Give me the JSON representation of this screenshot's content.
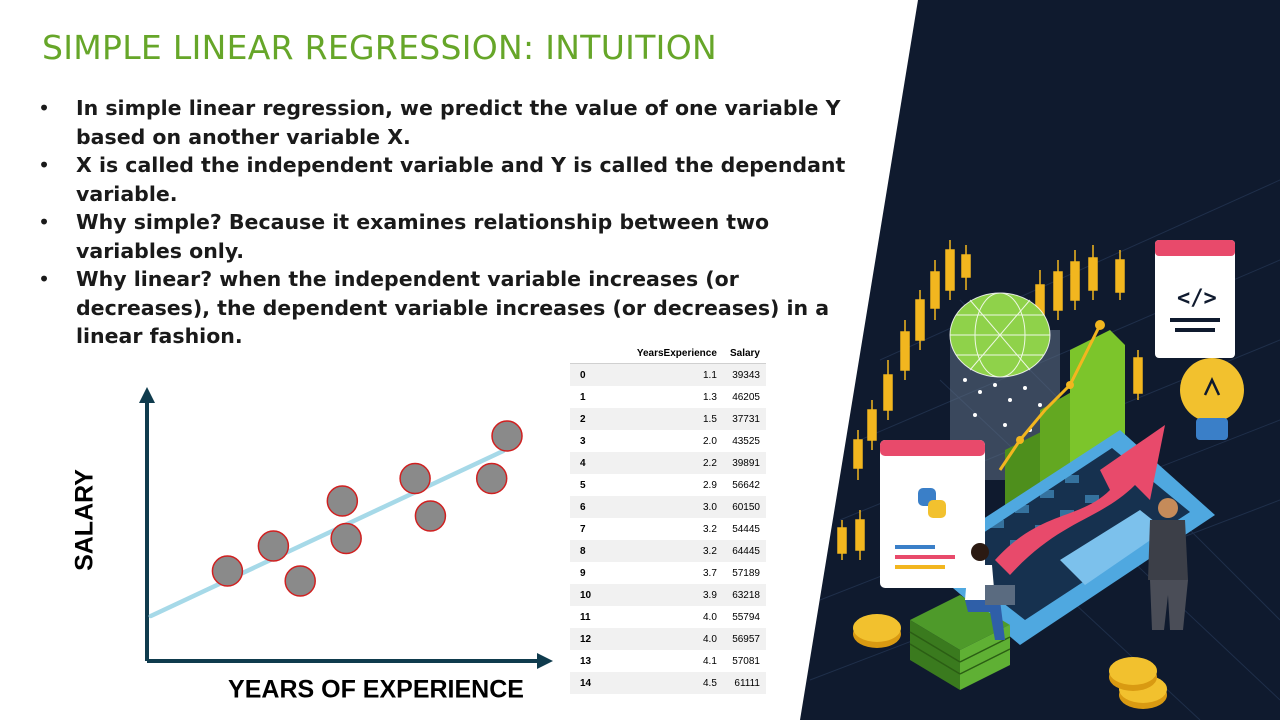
{
  "slide": {
    "title": "SIMPLE LINEAR REGRESSION: INTUITION",
    "bullet_symbol": "•",
    "bullets": [
      "In simple linear regression, we predict the value of one variable Y based on another variable X.",
      "X is called the independent variable and Y is called the dependant variable.",
      "Why simple? Because it examines relationship between two variables only.",
      "Why linear? when the independent variable increases (or decreases), the dependent variable increases (or decreases) in a linear fashion."
    ]
  },
  "chart_data": {
    "type": "scatter",
    "xlabel": "YEARS OF EXPERIENCE",
    "ylabel": "SALARY",
    "xlim": [
      0,
      10
    ],
    "ylim": [
      0,
      10
    ],
    "grid": false,
    "points": [
      {
        "x": 2.1,
        "y": 3.6
      },
      {
        "x": 3.3,
        "y": 4.6
      },
      {
        "x": 4.0,
        "y": 3.2
      },
      {
        "x": 5.1,
        "y": 6.4
      },
      {
        "x": 5.2,
        "y": 4.9
      },
      {
        "x": 7.0,
        "y": 7.3
      },
      {
        "x": 7.4,
        "y": 5.8
      },
      {
        "x": 9.0,
        "y": 7.3
      },
      {
        "x": 9.4,
        "y": 9.0
      }
    ],
    "fit_line": {
      "x": [
        0.1,
        9.3
      ],
      "y": [
        1.8,
        8.4
      ]
    },
    "colors": {
      "point_fill": "#8a8a8a",
      "point_edge": "#d02020",
      "line": "#a6d9e8",
      "axes": "#0f3b4d"
    }
  },
  "table": {
    "columns": [
      "",
      "YearsExperience",
      "Salary"
    ],
    "rows": [
      [
        "0",
        "1.1",
        "39343"
      ],
      [
        "1",
        "1.3",
        "46205"
      ],
      [
        "2",
        "1.5",
        "37731"
      ],
      [
        "3",
        "2.0",
        "43525"
      ],
      [
        "4",
        "2.2",
        "39891"
      ],
      [
        "5",
        "2.9",
        "56642"
      ],
      [
        "6",
        "3.0",
        "60150"
      ],
      [
        "7",
        "3.2",
        "54445"
      ],
      [
        "8",
        "3.2",
        "64445"
      ],
      [
        "9",
        "3.7",
        "57189"
      ],
      [
        "10",
        "3.9",
        "63218"
      ],
      [
        "11",
        "4.0",
        "55794"
      ],
      [
        "12",
        "4.0",
        "56957"
      ],
      [
        "13",
        "4.1",
        "57081"
      ],
      [
        "14",
        "4.5",
        "61111"
      ]
    ]
  },
  "illustration": {
    "icons": [
      "candlestick-chart-icon",
      "globe-mesh-icon",
      "code-window-icon",
      "lightbulb-icon",
      "python-logo-icon",
      "bar-chart-icon",
      "rising-arrow-icon",
      "laptop-icon",
      "money-stack-icon",
      "coin-icon",
      "person-icon"
    ],
    "colors": {
      "background": "#0f1a2e",
      "candle": "#f2b61f",
      "green": "#6cb22a",
      "arrow": "#e84a6b",
      "laptop": "#4fa8e0"
    }
  }
}
